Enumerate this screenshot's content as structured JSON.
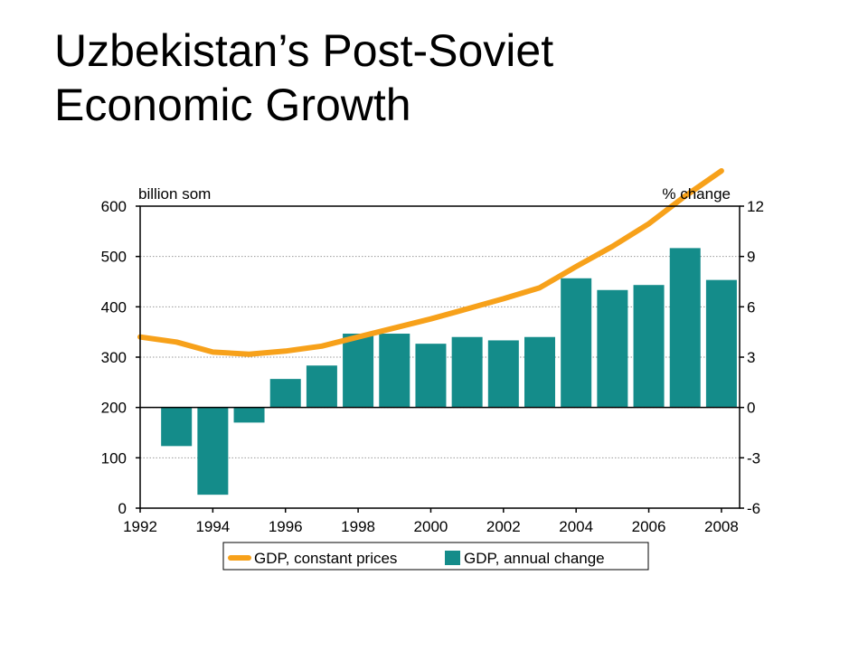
{
  "slide": {
    "title_line1": "Uzbekistan’s Post-Soviet",
    "title_line2": "Economic Growth"
  },
  "chart_data": {
    "type": "bar",
    "title": "",
    "left_axis_unit": "billion som",
    "right_axis_unit": "% change",
    "left_ylim": [
      0,
      600
    ],
    "right_ylim": [
      -6,
      12
    ],
    "left_ticks": [
      "600",
      "500",
      "400",
      "300",
      "200",
      "100",
      "0"
    ],
    "right_ticks": [
      "12",
      "9",
      "6",
      "3",
      "0",
      "-3",
      "-6"
    ],
    "x_tick_labels": [
      "1992",
      "1994",
      "1996",
      "1998",
      "2000",
      "2002",
      "2004",
      "2006",
      "2008"
    ],
    "grid": "horizontal dotted",
    "legend_position": "bottom",
    "series": [
      {
        "name": "GDP, constant prices",
        "type": "line",
        "axis": "left",
        "color": "#f7a11a",
        "x": [
          1992,
          1993,
          1994,
          1995,
          1996,
          1997,
          1998,
          1999,
          2000,
          2001,
          2002,
          2003,
          2004,
          2005,
          2006,
          2007,
          2008
        ],
        "values": [
          340,
          330,
          310,
          306,
          312,
          322,
          340,
          358,
          376,
          396,
          416,
          438,
          480,
          520,
          565,
          620,
          670
        ]
      },
      {
        "name": "GDP, annual change",
        "type": "bar",
        "axis": "right",
        "color": "#148c8a",
        "x": [
          1993,
          1994,
          1995,
          1996,
          1997,
          1998,
          1999,
          2000,
          2001,
          2002,
          2003,
          2004,
          2005,
          2006,
          2007,
          2008
        ],
        "values": [
          -2.3,
          -5.2,
          -0.9,
          1.7,
          2.5,
          4.4,
          4.4,
          3.8,
          4.2,
          4.0,
          4.2,
          7.7,
          7.0,
          7.3,
          9.5,
          7.6
        ]
      }
    ]
  },
  "colors": {
    "line": "#f7a11a",
    "bar": "#148c8a",
    "grid": "#9a9a9a",
    "axis": "#000000"
  }
}
